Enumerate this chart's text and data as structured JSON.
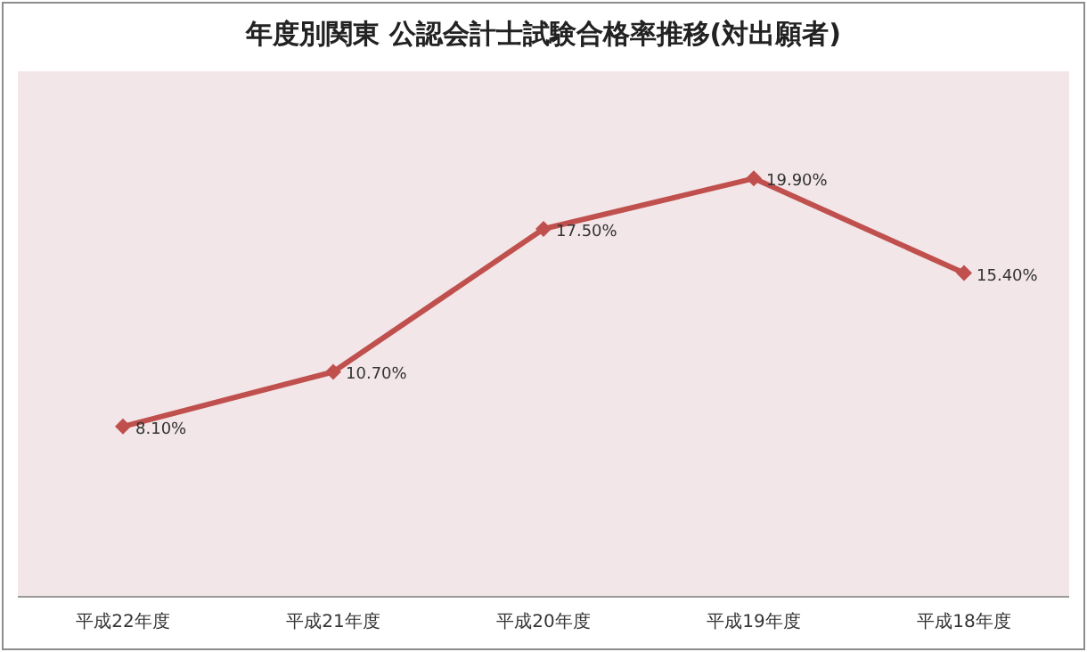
{
  "chart_data": {
    "type": "line",
    "title": "年度別関東  公認会計士試験合格率推移(対出願者)",
    "categories": [
      "平成22年度",
      "平成21年度",
      "平成20年度",
      "平成19年度",
      "平成18年度"
    ],
    "values": [
      8.1,
      10.7,
      17.5,
      19.9,
      15.4
    ],
    "value_labels": [
      "8.10%",
      "10.70%",
      "17.50%",
      "19.90%",
      "15.40%"
    ],
    "color": "#c0504d",
    "marker": "diamond",
    "ylim": [
      0,
      25
    ],
    "tick_labels": "x"
  }
}
